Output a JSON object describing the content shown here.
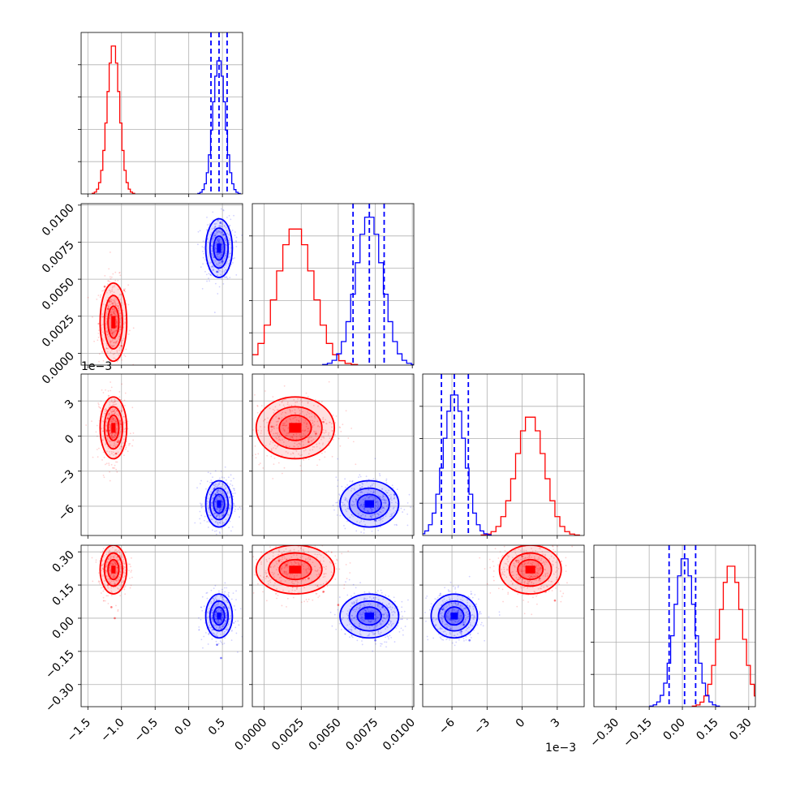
{
  "chart_data": {
    "type": "scatter",
    "variant": "corner-plot",
    "grid": true,
    "colors": {
      "series_a": "#ff0000",
      "series_b": "#0000ff"
    },
    "offset_labels": {
      "p2": "1e−3",
      "p3": "1e−3"
    },
    "params": [
      {
        "id": "p1",
        "range": [
          -1.6,
          0.8
        ],
        "ticks": [
          -1.5,
          -1.0,
          -0.5,
          0.0,
          0.5
        ],
        "tick_labels": [
          "−1.5",
          "−1.0",
          "−0.5",
          "0.0",
          "0.5"
        ]
      },
      {
        "id": "p2",
        "range": [
          -0.0008,
          0.0101
        ],
        "ticks": [
          0.0,
          0.0025,
          0.005,
          0.0075,
          0.01
        ],
        "tick_labels": [
          "0.0000",
          "0.0025",
          "0.0050",
          "0.0075",
          "0.0100"
        ]
      },
      {
        "id": "p3",
        "range": [
          -8.5,
          5.3
        ],
        "ticks": [
          -6,
          -3,
          0,
          3
        ],
        "tick_labels": [
          "−6",
          "−3",
          "0",
          "3"
        ]
      },
      {
        "id": "p4",
        "range": [
          -0.4,
          0.33
        ],
        "ticks": [
          -0.3,
          -0.15,
          0.0,
          0.15,
          0.3
        ],
        "tick_labels": [
          "−0.30",
          "−0.15",
          "0.00",
          "0.15",
          "0.30"
        ]
      }
    ],
    "series": [
      {
        "color": "#ff0000",
        "means": [
          -1.12,
          0.0021,
          0.7,
          0.22
        ],
        "stds": [
          0.09,
          0.0012,
          1.2,
          0.05
        ],
        "hist_peak": [
          1.0,
          0.92,
          0.8,
          0.95
        ],
        "quantiles": null
      },
      {
        "color": "#0000ff",
        "means": [
          0.45,
          0.0071,
          -5.8,
          0.01
        ],
        "stds": [
          0.09,
          0.0009,
          0.9,
          0.045
        ],
        "hist_peak": [
          0.9,
          1.0,
          0.95,
          1.0
        ],
        "quantiles": [
          [
            0.33,
            0.45,
            0.57
          ],
          [
            0.006,
            0.0071,
            0.0081
          ],
          [
            -6.9,
            -5.8,
            -4.6
          ],
          [
            -0.06,
            0.01,
            0.06
          ]
        ]
      }
    ],
    "scatter_points": [
      {
        "ij": [
          1,
          0
        ],
        "series": 0,
        "points": [
          [
            -1.12,
            0.0021
          ],
          [
            -1.2,
            0.003
          ],
          [
            -1.05,
            0.0015
          ],
          [
            -1.15,
            0.0026
          ],
          [
            -1.08,
            0.0018
          ],
          [
            -1.25,
            0.0045
          ],
          [
            -1.0,
            0.0005
          ],
          [
            -1.18,
            0.0035
          ],
          [
            -1.1,
            0.001
          ]
        ]
      },
      {
        "ij": [
          1,
          0
        ],
        "series": 1,
        "points": [
          [
            0.45,
            0.0071
          ],
          [
            0.38,
            0.0065
          ],
          [
            0.52,
            0.008
          ],
          [
            0.4,
            0.0078
          ],
          [
            0.5,
            0.0062
          ],
          [
            0.47,
            0.0088
          ],
          [
            0.42,
            0.0055
          ]
        ]
      },
      {
        "ij": [
          2,
          0
        ],
        "series": 0,
        "points": [
          [
            -1.12,
            0.7
          ],
          [
            -1.2,
            1.5
          ],
          [
            -1.05,
            -0.5
          ],
          [
            -1.15,
            2.5
          ],
          [
            -1.08,
            -1.5
          ],
          [
            -1.2,
            0.0
          ],
          [
            -1.0,
            1.0
          ]
        ]
      },
      {
        "ij": [
          2,
          0
        ],
        "series": 1,
        "points": [
          [
            0.45,
            -5.8
          ],
          [
            0.38,
            -4.5
          ],
          [
            0.52,
            -6.8
          ],
          [
            0.4,
            -5.0
          ],
          [
            0.5,
            -6.5
          ],
          [
            0.35,
            -4.0
          ]
        ]
      },
      {
        "ij": [
          2,
          1
        ],
        "series": 0,
        "points": [
          [
            0.0021,
            0.7
          ],
          [
            0.001,
            1.5
          ],
          [
            0.003,
            -0.5
          ],
          [
            0.0005,
            0.8
          ],
          [
            0.004,
            1.2
          ],
          [
            0.0015,
            -1.0
          ],
          [
            0.0035,
            0.2
          ]
        ]
      },
      {
        "ij": [
          2,
          1
        ],
        "series": 1,
        "points": [
          [
            0.0071,
            -5.8
          ],
          [
            0.0065,
            -4.5
          ],
          [
            0.008,
            -6.8
          ],
          [
            0.0058,
            -6.2
          ],
          [
            0.0088,
            -5.0
          ],
          [
            0.0075,
            -7.2
          ]
        ]
      },
      {
        "ij": [
          2,
          2
        ],
        "series": 0,
        "points": []
      },
      {
        "ij": [
          3,
          0
        ],
        "series": 0,
        "points": [
          [
            -1.12,
            0.22
          ],
          [
            -1.2,
            0.15
          ],
          [
            -1.05,
            0.28
          ],
          [
            -1.15,
            0.05
          ],
          [
            -1.1,
            0.0
          ],
          [
            -1.18,
            0.25
          ]
        ]
      },
      {
        "ij": [
          3,
          0
        ],
        "series": 1,
        "points": [
          [
            0.45,
            0.01
          ],
          [
            0.38,
            -0.05
          ],
          [
            0.52,
            0.05
          ],
          [
            0.42,
            -0.12
          ],
          [
            0.48,
            -0.18
          ],
          [
            0.4,
            0.03
          ]
        ]
      },
      {
        "ij": [
          3,
          1
        ],
        "series": 0,
        "points": [
          [
            0.0021,
            0.22
          ],
          [
            0.001,
            0.26
          ],
          [
            0.003,
            0.18
          ],
          [
            0.004,
            0.12
          ],
          [
            0.0015,
            0.24
          ],
          [
            0.005,
            0.06
          ]
        ]
      },
      {
        "ij": [
          3,
          1
        ],
        "series": 1,
        "points": [
          [
            0.0071,
            0.01
          ],
          [
            0.0065,
            -0.05
          ],
          [
            0.008,
            0.05
          ],
          [
            0.0075,
            -0.1
          ],
          [
            0.009,
            -0.02
          ]
        ]
      },
      {
        "ij": [
          3,
          2
        ],
        "series": 0,
        "points": [
          [
            0.7,
            0.22
          ],
          [
            1.5,
            0.18
          ],
          [
            -0.5,
            0.26
          ],
          [
            2.0,
            0.12
          ],
          [
            0.0,
            0.28
          ],
          [
            2.8,
            0.08
          ]
        ]
      },
      {
        "ij": [
          3,
          2
        ],
        "series": 1,
        "points": [
          [
            -5.8,
            0.01
          ],
          [
            -6.5,
            0.03
          ],
          [
            -5.0,
            -0.03
          ],
          [
            -4.5,
            -0.1
          ],
          [
            -6.8,
            0.04
          ],
          [
            -5.2,
            -0.06
          ]
        ]
      }
    ]
  }
}
